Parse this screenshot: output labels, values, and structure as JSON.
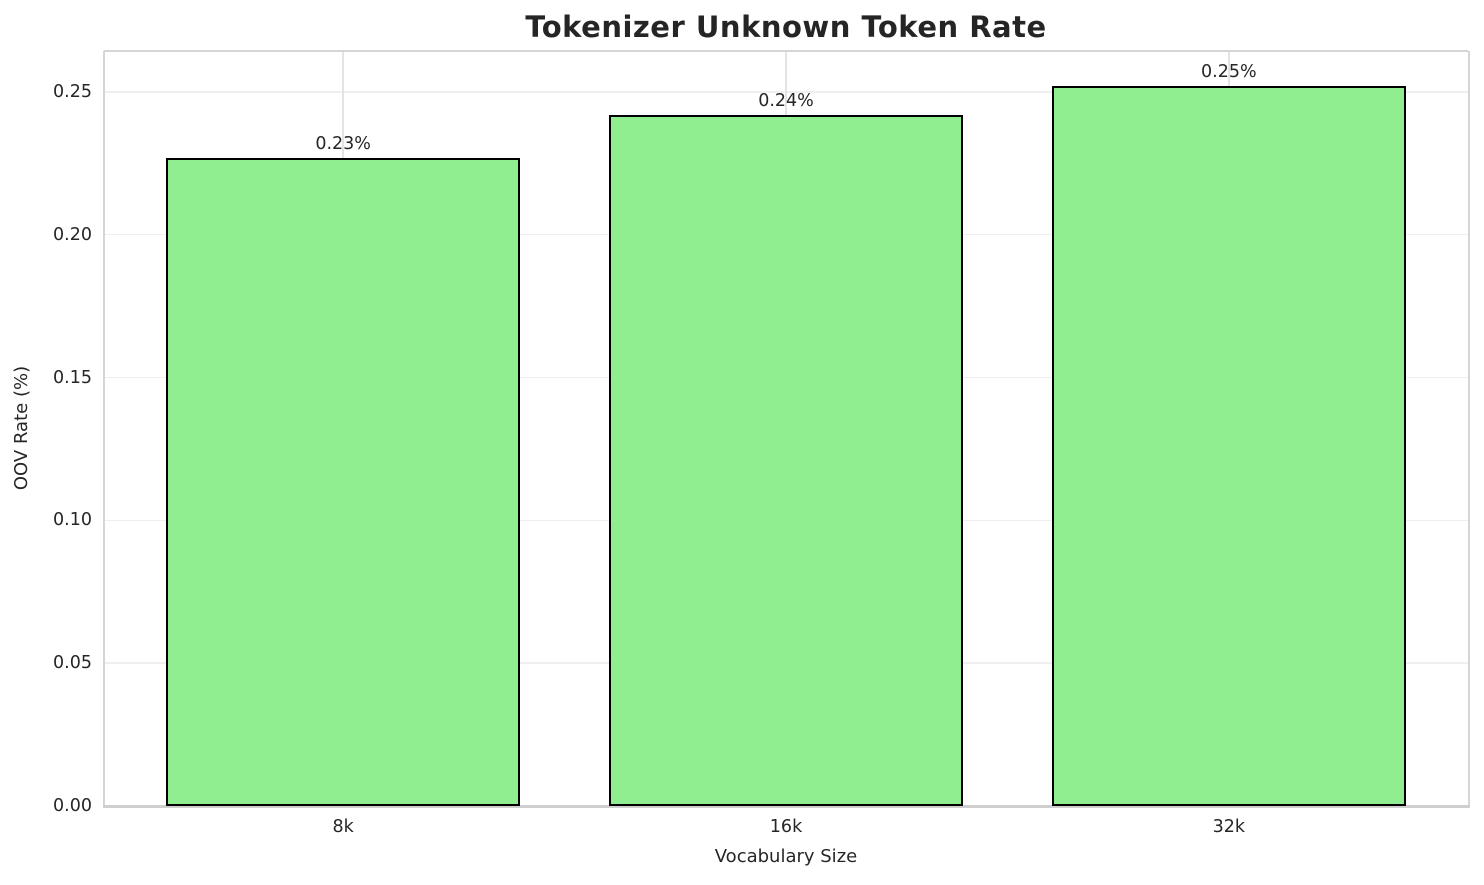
{
  "chart_data": {
    "type": "bar",
    "title": "Tokenizer Unknown Token Rate",
    "xlabel": "Vocabulary Size",
    "ylabel": "OOV Rate (%)",
    "categories": [
      "8k",
      "16k",
      "32k"
    ],
    "values": [
      0.227,
      0.242,
      0.252
    ],
    "bar_labels": [
      "0.23%",
      "0.24%",
      "0.25%"
    ],
    "yticks": [
      0,
      0.05,
      0.1,
      0.15,
      0.2,
      0.25
    ],
    "ytick_labels": [
      "0.00",
      "0.05",
      "0.10",
      "0.15",
      "0.20",
      "0.25"
    ],
    "ylim": [
      0,
      0.2643
    ],
    "xlim": [
      -0.54,
      2.54
    ],
    "bar_width": 0.8,
    "grid": true,
    "legend_position": "none",
    "colors": {
      "bar_fill": "#90EE90",
      "bar_edge": "#000000",
      "grid_line_h": "#efefef",
      "grid_line_v": "#e4e4e4",
      "spine": "#d5d5d5",
      "text": "#262626",
      "background": "#ffffff"
    }
  }
}
